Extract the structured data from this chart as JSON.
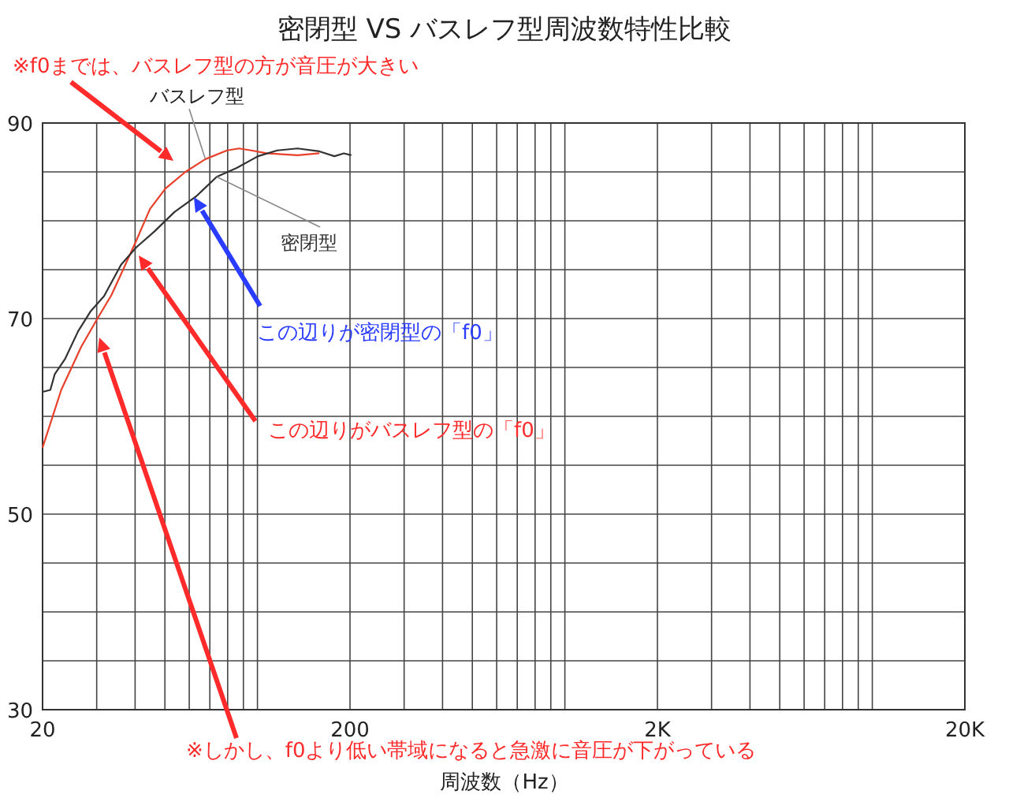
{
  "chart_data": {
    "type": "line",
    "title": "密閉型 VS バスレフ型周波数特性比較",
    "xlabel": "周波数（Hz）",
    "annotations": [
      "※f0までは、バスレフ型の方が音圧が大きい",
      "この辺りが密閉型の「f0」",
      "この辺りがバスレフ型の「f0」",
      "※しかし、f0より低い帯域になると急激に音圧が下がっている"
    ],
    "series": [
      {
        "name": "バスレフ型",
        "color": "#e8402a",
        "x": [
          20,
          23.0,
          26.7,
          29.9,
          33.5,
          36.8,
          40.4,
          44.7,
          50.2,
          58.3,
          67.7,
          79.6,
          87.1,
          95.5,
          107,
          135,
          159
        ],
        "values": [
          56.8,
          62.7,
          67.1,
          69.8,
          72.4,
          75.2,
          78.0,
          81.2,
          83.3,
          85.0,
          86.3,
          87.2,
          87.4,
          87.2,
          86.9,
          86.7,
          86.9
        ]
      },
      {
        "name": "密閉型",
        "color": "#333333",
        "x": [
          20,
          21.2,
          21.9,
          23.7,
          26.1,
          28.6,
          31.7,
          36.0,
          40.4,
          46.2,
          53.7,
          63.2,
          73.7,
          85.6,
          100.4,
          116,
          135,
          159,
          178,
          191,
          202
        ],
        "values": [
          62.5,
          62.7,
          64.3,
          65.9,
          68.7,
          70.7,
          72.3,
          75.5,
          77.3,
          78.9,
          80.9,
          82.5,
          84.5,
          85.4,
          86.6,
          87.2,
          87.4,
          87.1,
          86.6,
          86.9,
          86.7
        ]
      }
    ],
    "log": "x",
    "xlim": [
      20,
      20000
    ],
    "ylim": [
      30,
      90
    ],
    "xticks": [
      20,
      {
        "value": 30,
        "label": null
      },
      {
        "value": 40,
        "label": null
      },
      {
        "value": 50,
        "label": null
      },
      {
        "value": 60,
        "label": null
      },
      {
        "value": 70,
        "label": null
      },
      {
        "value": 80,
        "label": null
      },
      {
        "value": 90,
        "label": null
      },
      {
        "value": 100,
        "label": null
      },
      200,
      {
        "value": 300,
        "label": null
      },
      {
        "value": 400,
        "label": null
      },
      {
        "value": 500,
        "label": null
      },
      {
        "value": 600,
        "label": null
      },
      {
        "value": 700,
        "label": null
      },
      {
        "value": 800,
        "label": null
      },
      {
        "value": 900,
        "label": null
      },
      {
        "value": 1000,
        "label": null
      },
      {
        "value": 2000,
        "label": "2K"
      },
      {
        "value": 3000,
        "label": null
      },
      {
        "value": 4000,
        "label": null
      },
      {
        "value": 5000,
        "label": null
      },
      {
        "value": 6000,
        "label": null
      },
      {
        "value": 7000,
        "label": null
      },
      {
        "value": 8000,
        "label": null
      },
      {
        "value": 9000,
        "label": null
      },
      {
        "value": 10000,
        "label": null
      },
      {
        "value": 20000,
        "label": "20K"
      }
    ],
    "yticks": [
      30,
      {
        "value": 35,
        "label": null
      },
      {
        "value": 40,
        "label": null
      },
      {
        "value": 45,
        "label": null
      },
      50,
      {
        "value": 55,
        "label": null
      },
      {
        "value": 60,
        "label": null
      },
      {
        "value": 65,
        "label": null
      },
      70,
      {
        "value": 75,
        "label": null
      },
      {
        "value": 80,
        "label": null
      },
      {
        "value": 85,
        "label": null
      },
      90
    ],
    "grid": true
  }
}
